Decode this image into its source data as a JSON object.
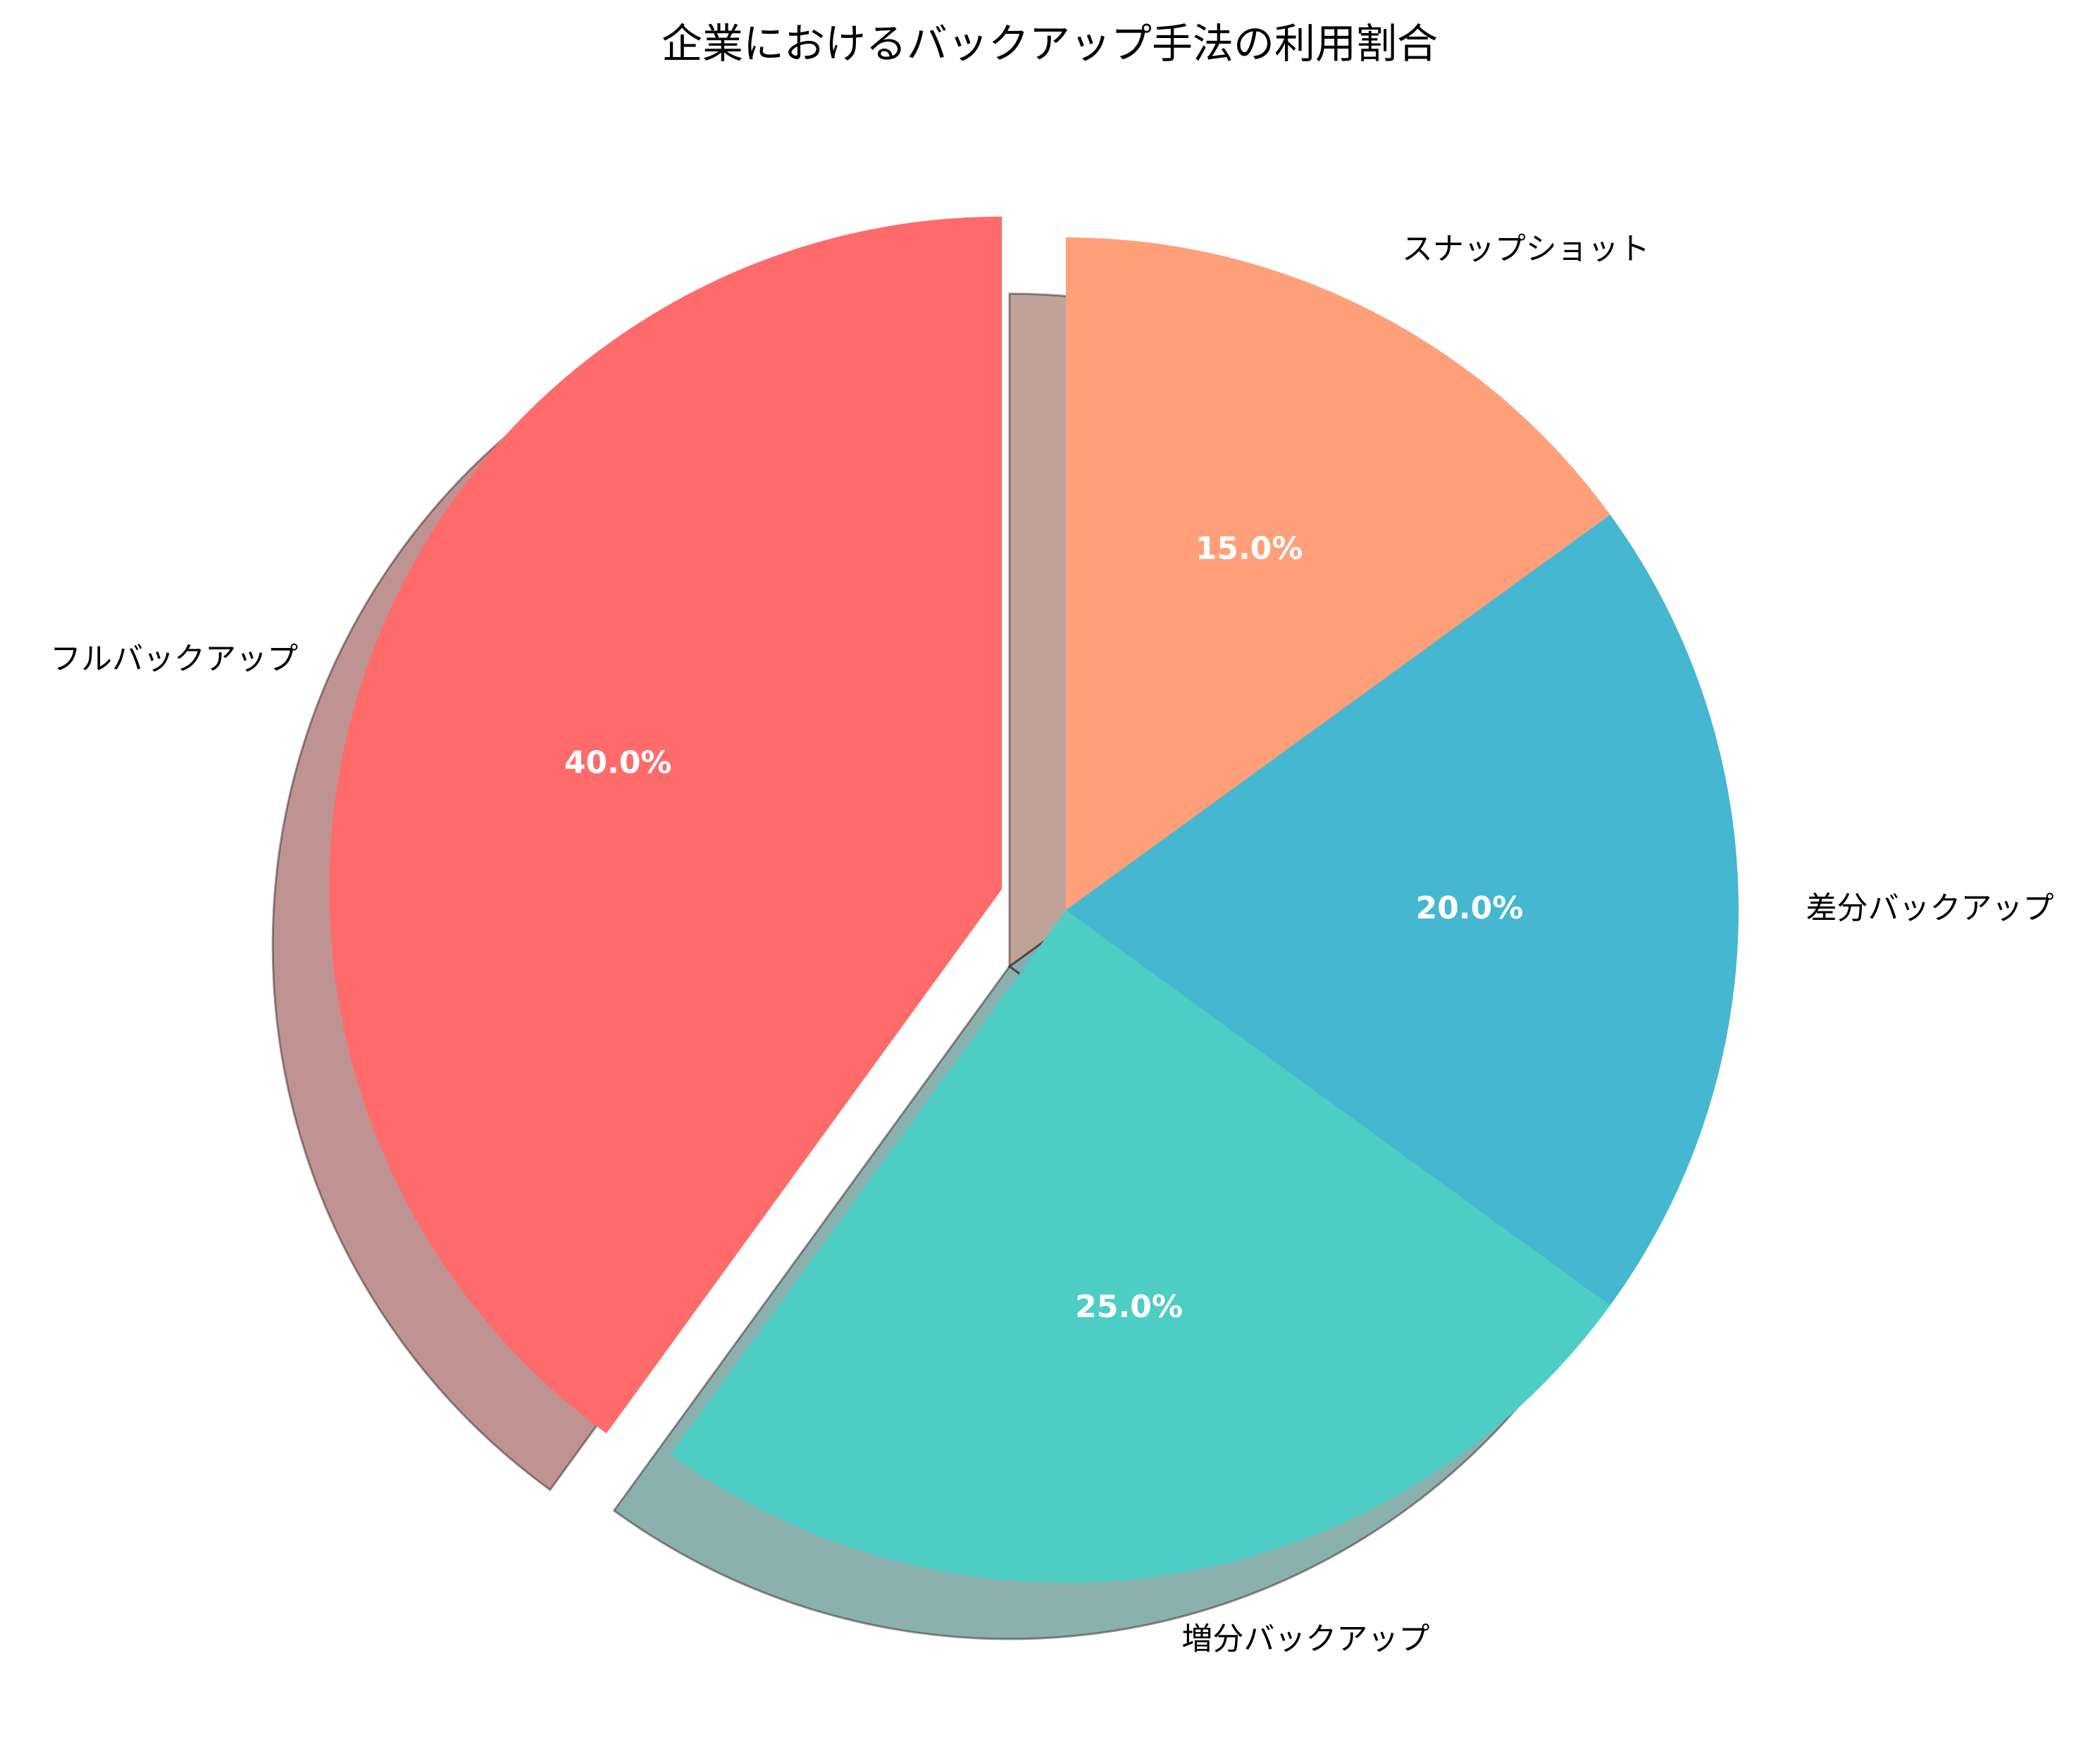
{
  "chart_data": {
    "type": "pie",
    "title": "企業におけるバックアップ手法の利用割合",
    "categories": [
      "フルバックアップ",
      "増分バックアップ",
      "差分バックアップ",
      "スナップショット"
    ],
    "values": [
      40.0,
      25.0,
      20.0,
      15.0
    ],
    "percent_labels": [
      "40.0%",
      "25.0%",
      "20.0%",
      "15.0%"
    ],
    "colors": [
      "#FF6B6B",
      "#4ECDC4",
      "#45B7D1",
      "#FFA07A"
    ],
    "exploded": [
      true,
      false,
      false,
      false
    ],
    "start_angle": 90,
    "direction": "counterclockwise",
    "shadow": true
  }
}
